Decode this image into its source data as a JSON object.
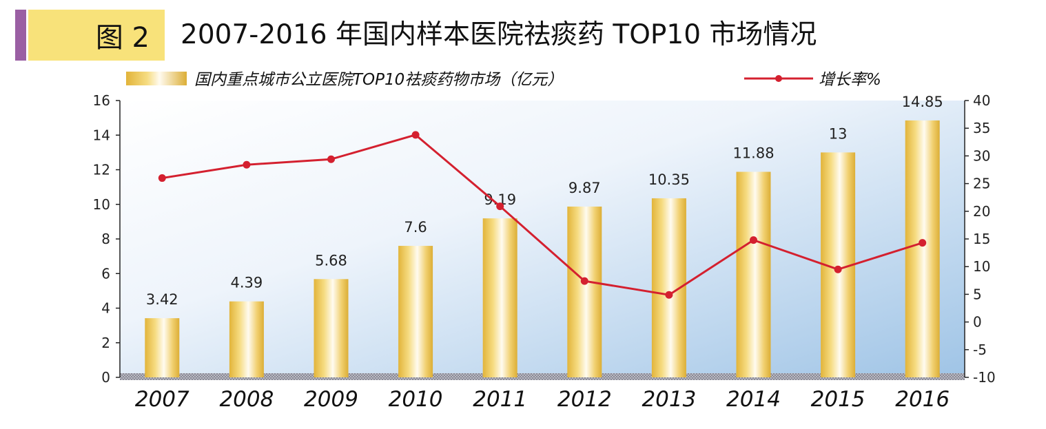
{
  "header": {
    "figure_label": "图 2",
    "title": "2007-2016 年国内样本医院祛痰药 TOP10 市场情况"
  },
  "colors": {
    "frame_purple": "#9a5fa3",
    "badge_yellow": "#f8e27a",
    "bar_gold": "#ecc54c",
    "line_red": "#d4202f",
    "plot_blue": "#a9cbe8"
  },
  "chart_data": {
    "type": "bar+line",
    "categories": [
      "2007",
      "2008",
      "2009",
      "2010",
      "2011",
      "2012",
      "2013",
      "2014",
      "2015",
      "2016"
    ],
    "series": [
      {
        "name": "国内重点城市公立医院TOP10祛痰药物市场（亿元）",
        "type": "bar",
        "axis": "left",
        "values": [
          3.42,
          4.39,
          5.68,
          7.6,
          9.19,
          9.87,
          10.35,
          11.88,
          13,
          14.85
        ],
        "labels": [
          "3.42",
          "4.39",
          "5.68",
          "7.6",
          "9.19",
          "9.87",
          "10.35",
          "11.88",
          "13",
          "14.85"
        ]
      },
      {
        "name": "增长率%",
        "type": "line",
        "axis": "right",
        "values": [
          26,
          28.4,
          29.4,
          33.8,
          20.9,
          7.4,
          4.9,
          14.8,
          9.5,
          14.3
        ]
      }
    ],
    "y_left": {
      "min": 0,
      "max": 16,
      "ticks": [
        0,
        2,
        4,
        6,
        8,
        10,
        12,
        14,
        16
      ]
    },
    "y_right": {
      "min": -10,
      "max": 40,
      "ticks": [
        -10,
        -5,
        0,
        5,
        10,
        15,
        20,
        25,
        30,
        35,
        40
      ]
    },
    "legend": "top",
    "grid": false
  }
}
